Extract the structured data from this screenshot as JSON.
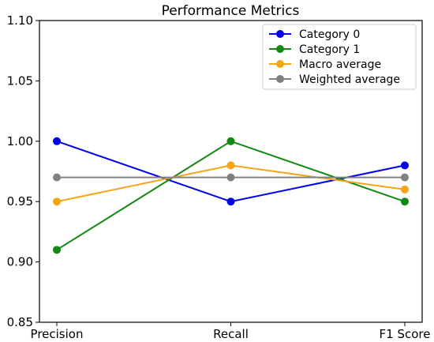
{
  "chart_data": {
    "type": "line",
    "title": "Performance Metrics",
    "xlabel": "",
    "ylabel": "",
    "categories": [
      "Precision",
      "Recall",
      "F1 Score"
    ],
    "ylim": [
      0.85,
      1.1
    ],
    "yticks": [
      "0.85",
      "0.90",
      "0.95",
      "1.00",
      "1.05",
      "1.10"
    ],
    "grid": false,
    "legend_position": "top-right",
    "series": [
      {
        "name": "Category 0",
        "color": "#0000ee",
        "values": [
          1.0,
          0.95,
          0.98
        ]
      },
      {
        "name": "Category 1",
        "color": "#118811",
        "values": [
          0.91,
          1.0,
          0.95
        ]
      },
      {
        "name": "Macro average",
        "color": "#f5a416",
        "values": [
          0.95,
          0.98,
          0.96
        ]
      },
      {
        "name": "Weighted average",
        "color": "#808080",
        "values": [
          0.97,
          0.97,
          0.97
        ]
      }
    ]
  }
}
